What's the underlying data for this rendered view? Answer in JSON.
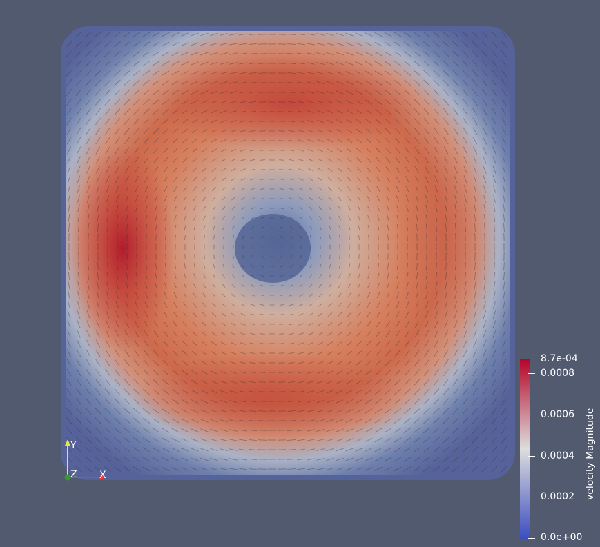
{
  "scalar_bar": {
    "title": "velocity Magnitude",
    "max_label": "8.7e-04",
    "min_label": "0.0e+00",
    "ticks": [
      "0.0008",
      "0.0006",
      "0.0004",
      "0.0002"
    ],
    "range": [
      0,
      0.00087
    ],
    "tick_values": [
      0.0008,
      0.0006,
      0.0004,
      0.0002
    ],
    "colormap": [
      "#3b4cc0",
      "#dddddd",
      "#b40426"
    ]
  },
  "axes": {
    "x": "X",
    "y": "Y",
    "z": "Z",
    "x_color": "#e83a3a",
    "y_color": "#e8e83a",
    "z_color": "#2ea02e"
  },
  "background": "#525a6f"
}
